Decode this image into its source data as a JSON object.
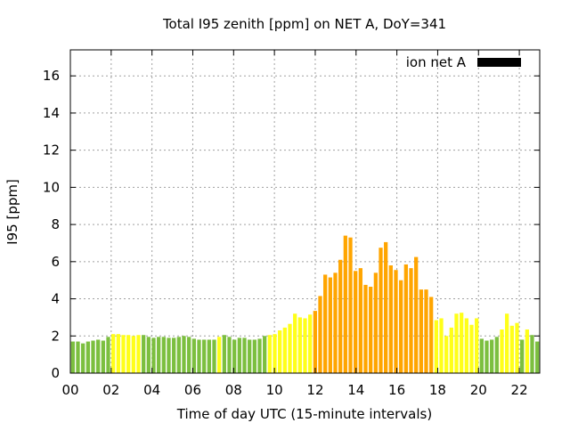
{
  "chart_data": {
    "type": "bar",
    "title": "Total I95 zenith [ppm] on NET A, DoY=341",
    "xlabel": "Time of day UTC (15-minute intervals)",
    "ylabel": "I95 [ppm]",
    "legend": {
      "label": "ion net A",
      "color": "#000000",
      "position": "top-right"
    },
    "xlim": [
      0,
      23
    ],
    "ylim": [
      0,
      17.4
    ],
    "x_ticks": [
      "00",
      "02",
      "04",
      "06",
      "08",
      "10",
      "12",
      "14",
      "16",
      "18",
      "20",
      "22"
    ],
    "y_ticks": [
      "0",
      "2",
      "4",
      "6",
      "8",
      "10",
      "12",
      "14",
      "16"
    ],
    "grid": true,
    "colors": {
      "low": "#7cbf3f",
      "moderate": "#ffff19",
      "high": "#ffa500"
    },
    "series": [
      {
        "values": [
          1.7,
          1.7,
          1.6,
          1.7,
          1.75,
          1.8,
          1.75,
          1.95,
          2.1,
          2.1,
          2.05,
          2.05,
          2.0,
          2.05,
          2.05,
          1.95,
          1.9,
          1.95,
          1.95,
          1.9,
          1.9,
          1.95,
          2.0,
          1.95,
          1.85,
          1.8,
          1.8,
          1.8,
          1.8,
          1.95,
          2.05,
          1.95,
          1.8,
          1.9,
          1.9,
          1.8,
          1.8,
          1.85,
          2.0,
          2.05,
          2.1,
          2.3,
          2.45,
          2.65,
          3.2,
          3.0,
          2.95,
          3.15,
          3.35,
          4.15,
          5.3,
          5.15,
          5.4,
          6.1,
          7.4,
          7.3,
          5.5,
          5.65,
          4.75,
          4.65,
          5.4,
          6.75,
          7.05,
          5.8,
          5.55,
          5.0,
          5.85,
          5.65,
          6.25,
          4.5,
          4.5,
          4.1,
          2.85,
          2.95,
          2.0,
          2.45,
          3.2,
          3.25,
          2.95,
          2.6,
          2.95,
          1.85,
          1.75,
          1.8,
          1.95,
          2.35,
          3.2,
          2.55,
          2.7,
          1.8,
          2.35,
          2.05,
          1.7
        ],
        "levels": [
          "low",
          "low",
          "low",
          "low",
          "low",
          "low",
          "low",
          "low",
          "moderate",
          "moderate",
          "moderate",
          "moderate",
          "moderate",
          "moderate",
          "low",
          "low",
          "low",
          "low",
          "low",
          "low",
          "low",
          "low",
          "low",
          "low",
          "low",
          "low",
          "low",
          "low",
          "low",
          "moderate",
          "low",
          "low",
          "low",
          "low",
          "low",
          "low",
          "low",
          "low",
          "low",
          "moderate",
          "moderate",
          "moderate",
          "moderate",
          "moderate",
          "moderate",
          "moderate",
          "moderate",
          "moderate",
          "high",
          "high",
          "high",
          "high",
          "high",
          "high",
          "high",
          "high",
          "high",
          "high",
          "high",
          "high",
          "high",
          "high",
          "high",
          "high",
          "high",
          "high",
          "high",
          "high",
          "high",
          "high",
          "high",
          "high",
          "moderate",
          "moderate",
          "moderate",
          "moderate",
          "moderate",
          "moderate",
          "moderate",
          "moderate",
          "moderate",
          "low",
          "low",
          "low",
          "low",
          "moderate",
          "moderate",
          "moderate",
          "moderate",
          "low",
          "moderate",
          "low",
          "low"
        ]
      }
    ]
  }
}
